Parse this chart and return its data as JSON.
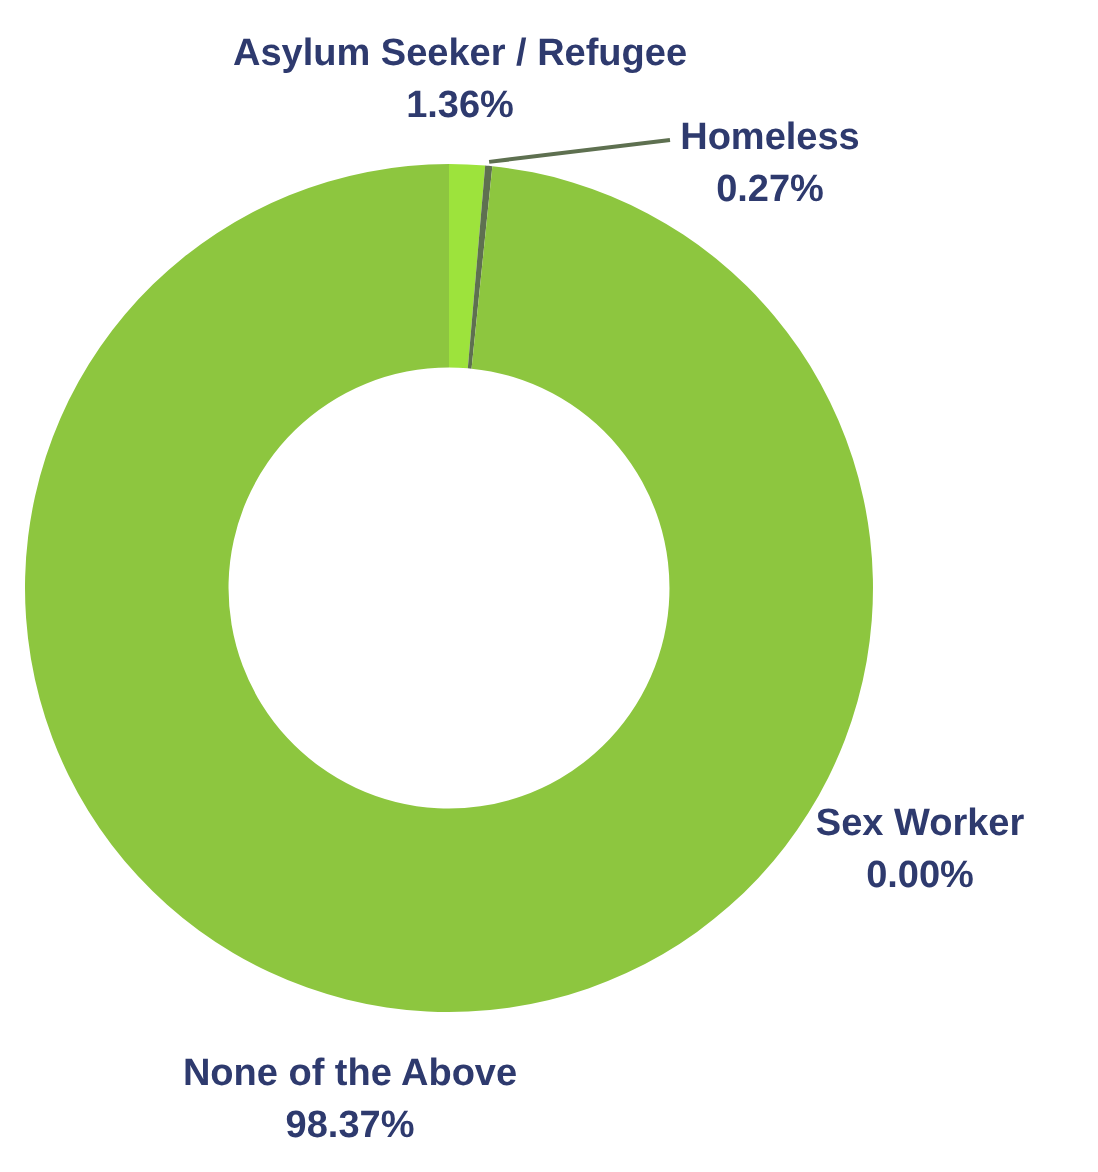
{
  "chart_data": {
    "type": "donut",
    "categories": [
      "Asylum Seeker / Refugee",
      "Homeless",
      "Sex Worker",
      "None of the Above"
    ],
    "values": [
      1.36,
      0.27,
      0,
      98.37
    ],
    "value_labels": [
      "1.36%",
      "0.27%",
      "0.00%",
      "98.37%"
    ],
    "colors": [
      "#9de33c",
      "#5e7050",
      "#3c4a8c",
      "#8dc63f"
    ],
    "legend": false
  }
}
